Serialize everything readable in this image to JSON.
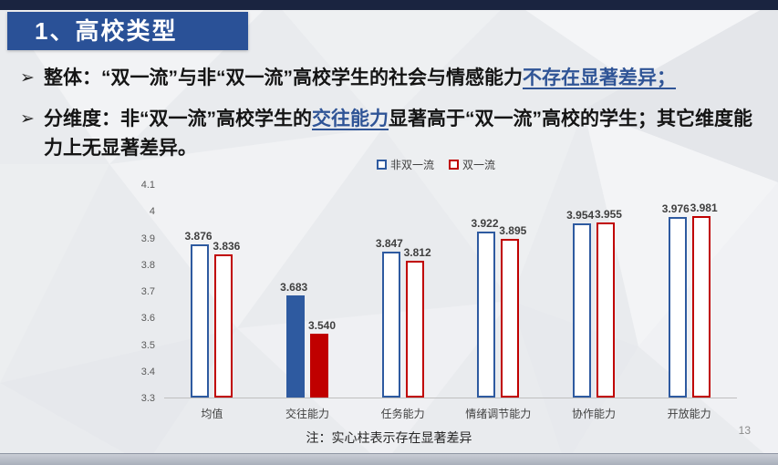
{
  "slide": {
    "title": "1、高校类型",
    "page_number": "13",
    "note": "注：实心柱表示存在显著差异"
  },
  "bullets": [
    {
      "marker": "➢",
      "segments": [
        {
          "text": "整体：“双一流”与非“双一流”高校学生的社会与情感能力",
          "style": "plain"
        },
        {
          "text": "不存在显著差异；",
          "style": "highlight"
        }
      ]
    },
    {
      "marker": "➢",
      "segments": [
        {
          "text": "分维度：非“双一流”高校学生的",
          "style": "plain"
        },
        {
          "text": "交往能力",
          "style": "highlight"
        },
        {
          "text": "显著高于“双一流”高校的学生；其它维度能力上无显著差异。",
          "style": "plain"
        }
      ]
    }
  ],
  "colors": {
    "top_strip": "#1a2440",
    "title_box": "#2a5197",
    "highlight_text": "#2f5496",
    "bar_blue": "#2e5aa0",
    "bar_red": "#c00000"
  },
  "chart_data": {
    "type": "bar",
    "title": "",
    "xlabel": "",
    "ylabel": "",
    "categories": [
      "均值",
      "交往能力",
      "任务能力",
      "情绪调节能力",
      "协作能力",
      "开放能力"
    ],
    "series": [
      {
        "name": "非双一流",
        "color": "#2e5aa0",
        "values": [
          3.876,
          3.683,
          3.847,
          3.922,
          3.954,
          3.976
        ],
        "labels": [
          "3.876",
          "3.683",
          "3.847",
          "3.922",
          "3.954",
          "3.976"
        ]
      },
      {
        "name": "双一流",
        "color": "#c00000",
        "values": [
          3.836,
          3.54,
          3.812,
          3.895,
          3.955,
          3.981
        ],
        "labels": [
          "3.836",
          "3.540",
          "3.812",
          "3.895",
          "3.955",
          "3.981"
        ]
      }
    ],
    "significant_solid": [
      false,
      true,
      false,
      false,
      false,
      false
    ],
    "ylim": [
      3.3,
      4.1
    ],
    "yticks": [
      "4.1",
      "4",
      "3.9",
      "3.8",
      "3.7",
      "3.6",
      "3.5",
      "3.4",
      "3.3"
    ],
    "legend_position": "top",
    "grid": false
  }
}
